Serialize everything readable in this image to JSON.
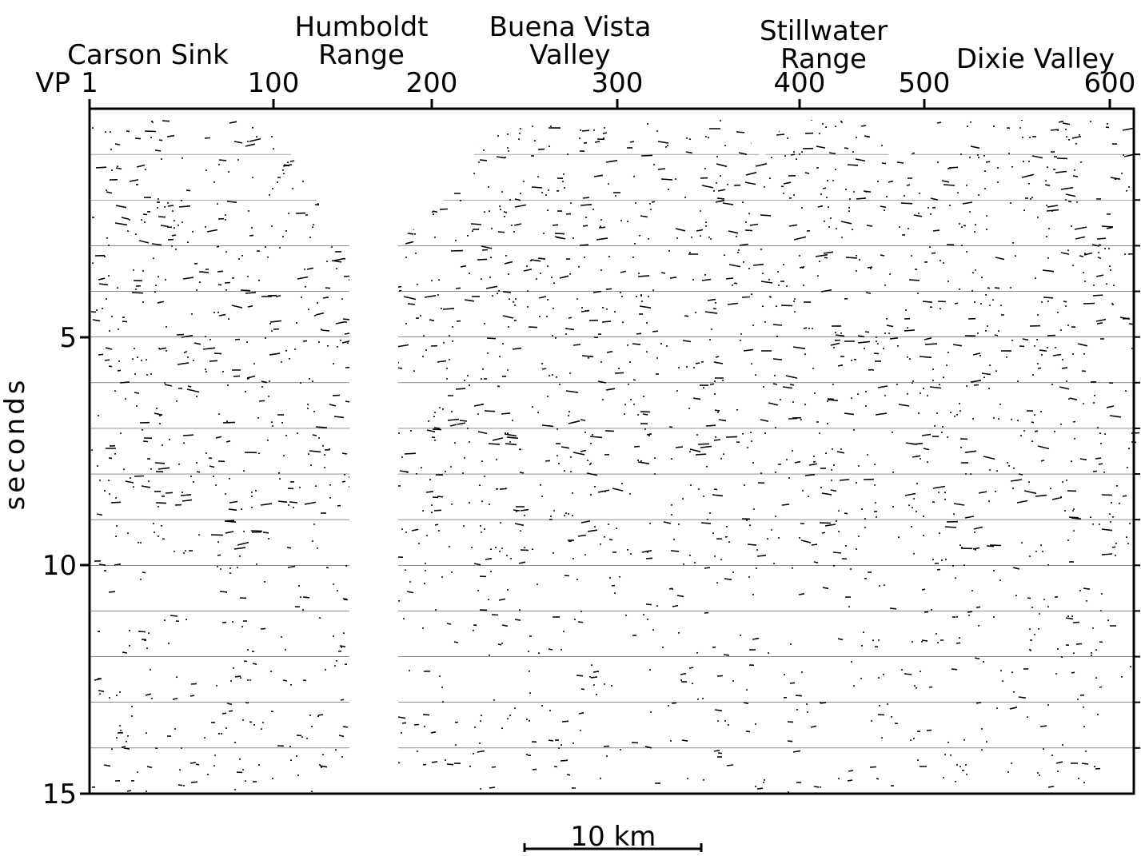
{
  "profile_labels": [
    {
      "lines": [
        "Carson Sink"
      ]
    },
    {
      "lines": [
        "Humboldt",
        "Range"
      ]
    },
    {
      "lines": [
        "Buena Vista",
        "Valley"
      ]
    },
    {
      "lines": [
        "Stillwater",
        "Range"
      ]
    },
    {
      "lines": [
        "Dixie Valley"
      ]
    }
  ],
  "vp_axis": {
    "label": "VP",
    "ticks": [
      "1",
      "100",
      "200",
      "300",
      "400",
      "500",
      "600"
    ]
  },
  "time_axis": {
    "label": "seconds",
    "ticks": [
      "5",
      "10",
      "15"
    ]
  },
  "scale_bar": "10 km"
}
